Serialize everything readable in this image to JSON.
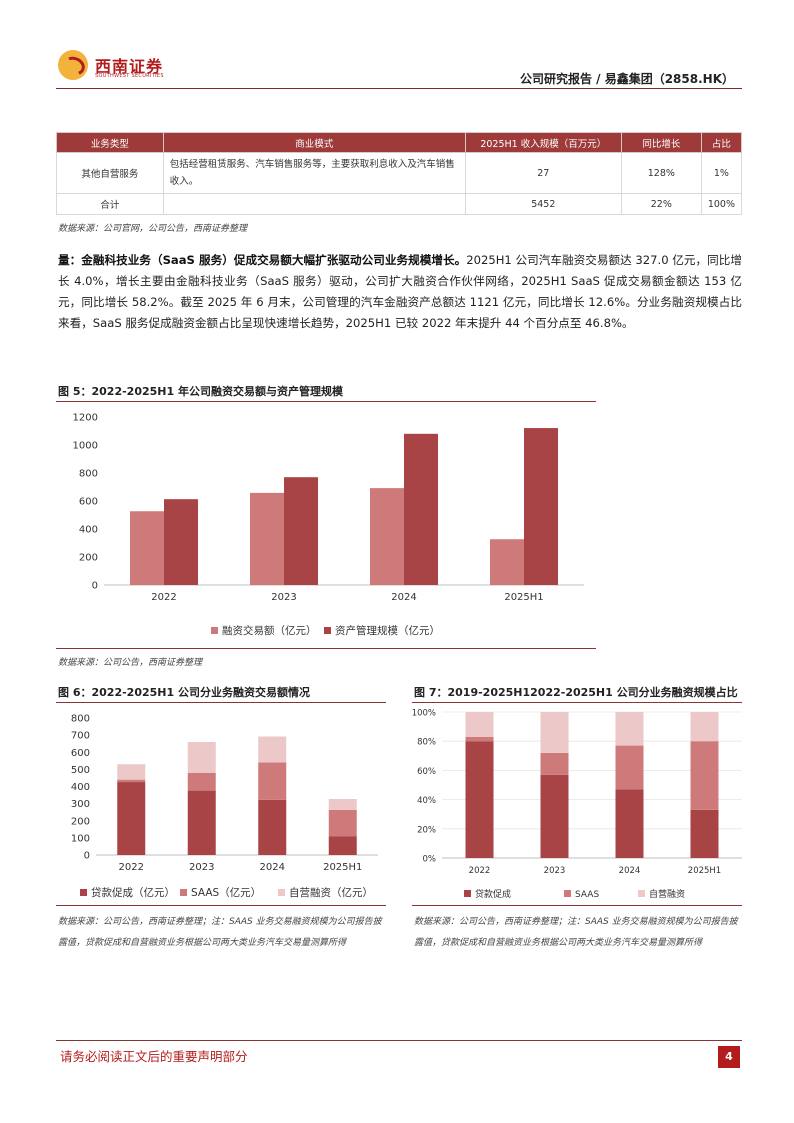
{
  "header": {
    "brand_name": "西南证券",
    "brand_sub": "SOUTHWEST SECURITIES",
    "report_label": "公司研究报告 / 易鑫集团（2858.HK）"
  },
  "table": {
    "headers": [
      "业务类型",
      "商业模式",
      "2025H1 收入规模（百万元）",
      "同比增长",
      "占比"
    ],
    "rows": [
      {
        "type": "其他自营服务",
        "model": "包括经营租赁服务、汽车销售服务等，主要获取利息收入及汽车销售收入。",
        "revenue": "27",
        "yoy": "128%",
        "share": "1%"
      },
      {
        "type": "合计",
        "model": "",
        "revenue": "5452",
        "yoy": "22%",
        "share": "100%"
      }
    ],
    "source": "数据来源：公司官网，公司公告，西南证券整理"
  },
  "paragraph": {
    "lead": "量：金融科技业务（SaaS 服务）促成交易额大幅扩张驱动公司业务规模增长。",
    "body": "2025H1 公司汽车融资交易额达 327.0 亿元，同比增长 4.0%，增长主要由金融科技业务（SaaS 服务）驱动，公司扩大融资合作伙伴网络，2025H1 SaaS 促成交易额金额达 153 亿元，同比增长 58.2%。截至 2025 年 6 月末，公司管理的汽车金融资产总额达 1121 亿元，同比增长 12.6%。分业务融资规模占比来看，SaaS 服务促成融资金额占比呈现快速增长趋势，2025H1 已较 2022 年末提升 44 个百分点至 46.8%。"
  },
  "fig5": {
    "title": "图 5：2022-2025H1 年公司融资交易额与资产管理规模",
    "source": "数据来源：公司公告，西南证券整理"
  },
  "fig6": {
    "title": "图 6：2022-2025H1 公司分业务融资交易额情况",
    "source": "数据来源：公司公告，西南证券整理；注：SAAS 业务交易融资规模为公司报告披露值，贷款促成和自营融资业务根据公司两大类业务汽车交易量测算所得"
  },
  "fig7": {
    "title": "图 7：2019-2025H12022-2025H1 公司分业务融资规模占比",
    "source": "数据来源：公司公告，西南证券整理；注：SAAS 业务交易融资规模为公司报告披露值，贷款促成和自营融资业务根据公司两大类业务汽车交易量测算所得"
  },
  "footer": {
    "notice": "请务必阅读正文后的重要声明部分",
    "page": "4"
  },
  "colors": {
    "dark_red": "#a84446",
    "mid_red": "#cf7a7a",
    "light_pink": "#ecc8c8",
    "accent": "#b31c1c"
  },
  "chart_data": [
    {
      "id": "fig5",
      "type": "bar",
      "categories": [
        "2022",
        "2023",
        "2024",
        "2025H1"
      ],
      "series": [
        {
          "name": "融资交易额（亿元）",
          "values": [
            527,
            658,
            692,
            327
          ]
        },
        {
          "name": "资产管理规模（亿元）",
          "values": [
            613,
            770,
            1080,
            1121
          ]
        }
      ],
      "yticks": [
        "0",
        "200",
        "400",
        "600",
        "800",
        "1000",
        "1200"
      ],
      "ylim": [
        0,
        1200
      ],
      "legend": "bottom"
    },
    {
      "id": "fig6",
      "type": "bar",
      "stacked": true,
      "categories": [
        "2022",
        "2023",
        "2024",
        "2025H1"
      ],
      "series": [
        {
          "name": "贷款促成（亿元）",
          "values": [
            426,
            376,
            322,
            110
          ]
        },
        {
          "name": "SAAS（亿元）",
          "values": [
            14,
            104,
            218,
            153
          ]
        },
        {
          "name": "自营融资（亿元）",
          "values": [
            90,
            180,
            152,
            64
          ]
        }
      ],
      "yticks": [
        "0",
        "100",
        "200",
        "300",
        "400",
        "500",
        "600",
        "700",
        "800"
      ],
      "ylim": [
        0,
        800
      ],
      "legend": "bottom"
    },
    {
      "id": "fig7",
      "type": "bar",
      "stacked": true,
      "categories": [
        "2022",
        "2023",
        "2024",
        "2025H1"
      ],
      "series": [
        {
          "name": "贷款促成",
          "values": [
            80,
            57,
            47,
            33
          ]
        },
        {
          "name": "SAAS",
          "values": [
            3,
            15,
            30,
            47
          ]
        },
        {
          "name": "自营融资",
          "values": [
            17,
            28,
            23,
            20
          ]
        }
      ],
      "yticks": [
        "0%",
        "20%",
        "40%",
        "60%",
        "80%",
        "100%"
      ],
      "ylim": [
        0,
        100
      ],
      "legend": "bottom"
    }
  ]
}
